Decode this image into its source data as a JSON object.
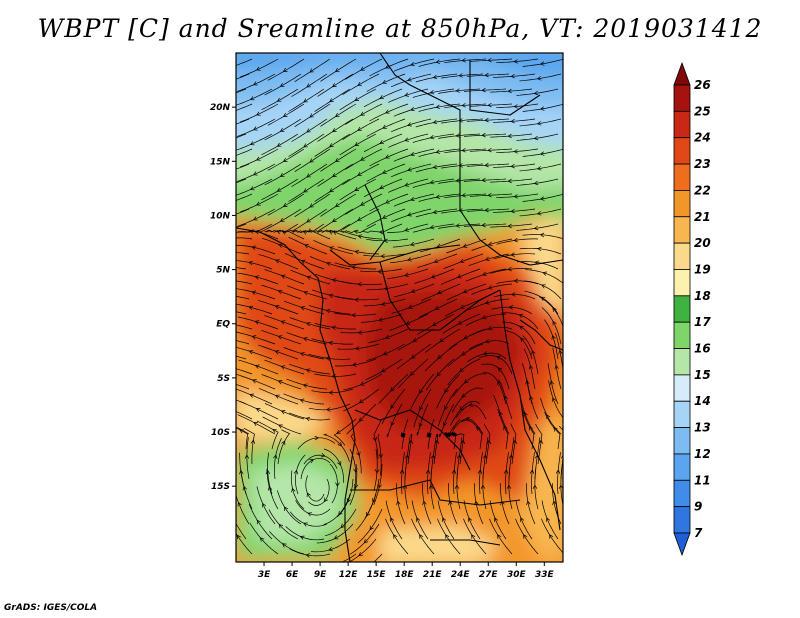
{
  "title": "WBPT [C] and Sreamline at 850hPa, VT: 2019031412",
  "credit": "GrADS: IGES/COLA",
  "map": {
    "lat_range": [
      -22,
      25
    ],
    "lon_range": [
      0,
      35
    ],
    "lat_ticks": [
      {
        "value": 20,
        "label": "20N"
      },
      {
        "value": 15,
        "label": "15N"
      },
      {
        "value": 10,
        "label": "10N"
      },
      {
        "value": 5,
        "label": "5N"
      },
      {
        "value": 0,
        "label": "EQ"
      },
      {
        "value": -5,
        "label": "5S"
      },
      {
        "value": -10,
        "label": "10S"
      },
      {
        "value": -15,
        "label": "15S"
      }
    ],
    "lon_ticks": [
      {
        "value": 3,
        "label": "3E"
      },
      {
        "value": 6,
        "label": "6E"
      },
      {
        "value": 9,
        "label": "9E"
      },
      {
        "value": 12,
        "label": "12E"
      },
      {
        "value": 15,
        "label": "15E"
      },
      {
        "value": 18,
        "label": "18E"
      },
      {
        "value": 21,
        "label": "21E"
      },
      {
        "value": 24,
        "label": "24E"
      },
      {
        "value": 27,
        "label": "27E"
      },
      {
        "value": 30,
        "label": "30E"
      },
      {
        "value": 33,
        "label": "33E"
      }
    ]
  },
  "colorbar": {
    "levels": [
      "7",
      "9",
      "11",
      "12",
      "13",
      "14",
      "15",
      "16",
      "17",
      "18",
      "19",
      "20",
      "21",
      "22",
      "23",
      "24",
      "25",
      "26"
    ],
    "colors": [
      "#1f5fd6",
      "#2f76e0",
      "#3f8de8",
      "#5aa5ee",
      "#7dbcf2",
      "#a6d4f6",
      "#d6ecf8",
      "#b4e6a7",
      "#7fd46a",
      "#3fb33f",
      "#fdf1b0",
      "#fbd98a",
      "#f8b650",
      "#f39629",
      "#ee6e1d",
      "#e04818",
      "#c82814",
      "#a6120d",
      "#800808"
    ]
  }
}
